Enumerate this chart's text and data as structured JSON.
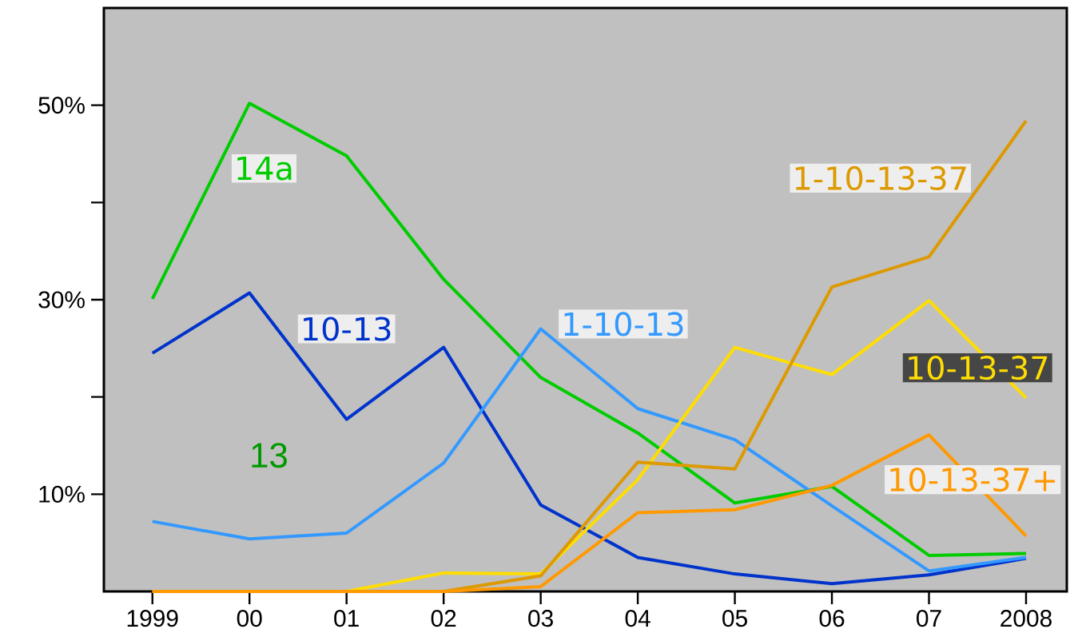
{
  "chart_data": {
    "type": "line",
    "x": [
      1999,
      2000,
      2001,
      2002,
      2003,
      2004,
      2005,
      2006,
      2007,
      2008
    ],
    "xlim": [
      1998.5,
      2008.42
    ],
    "ylim": [
      0,
      60
    ],
    "xticks": [
      {
        "value": 1999,
        "label": "1999"
      },
      {
        "value": 2000,
        "label": "00"
      },
      {
        "value": 2001,
        "label": "01"
      },
      {
        "value": 2002,
        "label": "02"
      },
      {
        "value": 2003,
        "label": "03"
      },
      {
        "value": 2004,
        "label": "04"
      },
      {
        "value": 2005,
        "label": "05"
      },
      {
        "value": 2006,
        "label": "06"
      },
      {
        "value": 2007,
        "label": "07"
      },
      {
        "value": 2008,
        "label": "2008"
      }
    ],
    "yticks": [
      {
        "value": 10,
        "label": "10%"
      },
      {
        "value": 20,
        "label": null
      },
      {
        "value": 30,
        "label": "30%"
      },
      {
        "value": 40,
        "label": null
      },
      {
        "value": 50,
        "label": "50%"
      }
    ],
    "series": [
      {
        "name": "14a",
        "color": "#00cc00",
        "values": [
          30.1,
          50.2,
          44.8,
          32.1,
          22.0,
          16.3,
          9.1,
          10.8,
          3.7,
          3.9
        ]
      },
      {
        "name": "10-13",
        "color": "#0033cc",
        "values": [
          24.5,
          30.7,
          17.7,
          25.1,
          8.9,
          3.5,
          1.8,
          0.8,
          1.7,
          3.4
        ]
      },
      {
        "name": "1-10-13",
        "color": "#3399ff",
        "values": [
          7.2,
          5.4,
          6.0,
          13.2,
          27.0,
          18.8,
          15.6,
          8.8,
          2.1,
          3.5
        ]
      },
      {
        "name": "10-13-37",
        "color": "#ffdd00",
        "values": [
          0,
          0,
          0,
          1.9,
          1.8,
          11.5,
          25.1,
          22.3,
          29.9,
          19.9
        ]
      },
      {
        "name": "1-10-13-37",
        "color": "#dd9900",
        "values": [
          0,
          0,
          0,
          0,
          1.6,
          13.3,
          12.6,
          31.3,
          34.4,
          48.4
        ]
      },
      {
        "name": "10-13-37+",
        "color": "#ff9900",
        "values": [
          0,
          0,
          0,
          0,
          0.5,
          8.1,
          8.4,
          10.9,
          16.1,
          5.7
        ]
      }
    ],
    "annotations": [
      "13"
    ],
    "legend": false,
    "marker": "none",
    "line_style": "solid"
  }
}
